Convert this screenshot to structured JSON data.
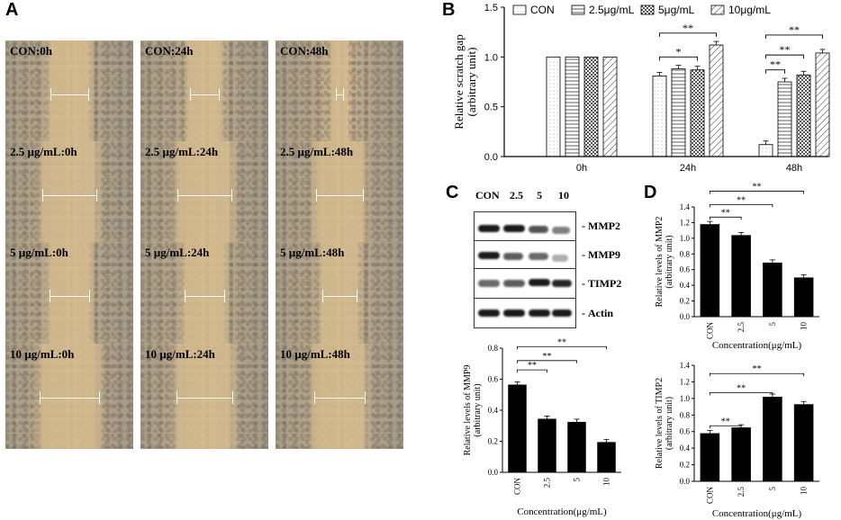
{
  "panels": {
    "a": "A",
    "b": "B",
    "c": "C",
    "d": "D"
  },
  "micrographs": [
    {
      "label": "CON:0h",
      "gap": 0.3
    },
    {
      "label": "CON:24h",
      "gap": 0.22
    },
    {
      "label": "CON:48h",
      "gap": 0.05
    },
    {
      "label": "2.5 µg/mL:0h",
      "gap": 0.42
    },
    {
      "label": "2.5 µg/mL:24h",
      "gap": 0.42
    },
    {
      "label": "2.5 µg/mL:48h",
      "gap": 0.36
    },
    {
      "label": "5 µg/mL:0h",
      "gap": 0.31
    },
    {
      "label": "5 µg/mL:24h",
      "gap": 0.31
    },
    {
      "label": "5 µg/mL:48h",
      "gap": 0.27
    },
    {
      "label": "10 µg/mL:0h",
      "gap": 0.46
    },
    {
      "label": "10 µg/mL:24h",
      "gap": 0.44
    },
    {
      "label": "10 µg/mL:48h",
      "gap": 0.4
    }
  ],
  "blot": {
    "header": [
      "CON",
      "2.5",
      "5",
      "10"
    ],
    "rows": [
      "MMP2",
      "MMP9",
      "TIMP2",
      "Actin"
    ]
  },
  "chart_data": [
    {
      "id": "B",
      "type": "bar",
      "categories": [
        "0h",
        "24h",
        "48h"
      ],
      "series": [
        {
          "name": "CON",
          "values": [
            1.0,
            0.81,
            0.12
          ]
        },
        {
          "name": "2.5μg/mL",
          "values": [
            1.0,
            0.88,
            0.75
          ]
        },
        {
          "name": "5μg/mL",
          "values": [
            1.0,
            0.87,
            0.82
          ]
        },
        {
          "name": "10μg/mL",
          "values": [
            1.0,
            1.12,
            1.04
          ]
        }
      ],
      "ylabel": "Relative scratch gap\n(arbitrary unit)",
      "ylim": [
        0,
        1.5
      ],
      "yticks": [
        "0.0",
        "0.5",
        "1.0",
        "1.5"
      ],
      "legend": "top",
      "annotations": [
        "*",
        "**",
        "**",
        "**",
        "**"
      ]
    },
    {
      "id": "C-MMP9",
      "type": "bar",
      "categories": [
        "CON",
        "2.5",
        "5",
        "10"
      ],
      "values": [
        0.565,
        0.345,
        0.325,
        0.195
      ],
      "ylabel": "Relative levels of MMP9\n(arbitrary unit)",
      "xlabel": "Concentration(μg/mL)",
      "ylim": [
        0,
        0.8
      ],
      "yticks": [
        "0.0",
        "0.2",
        "0.4",
        "0.6",
        "0.8"
      ],
      "annotations": [
        "**",
        "**",
        "**"
      ]
    },
    {
      "id": "D-MMP2",
      "type": "bar",
      "categories": [
        "CON",
        "2.5",
        "5",
        "10"
      ],
      "values": [
        1.18,
        1.04,
        0.69,
        0.5
      ],
      "ylabel": "Relative levels of MMP2\n(arbitrary unit)",
      "xlabel": "Concentration(μg/mL)",
      "ylim": [
        0,
        1.4
      ],
      "yticks": [
        "0.0",
        "0.2",
        "0.4",
        "0.6",
        "0.8",
        "1.0",
        "1.2",
        "1.4"
      ],
      "annotations": [
        "**",
        "**",
        "**"
      ]
    },
    {
      "id": "D-TIMP2",
      "type": "bar",
      "categories": [
        "CON",
        "2.5",
        "5",
        "10"
      ],
      "values": [
        0.58,
        0.65,
        1.02,
        0.93
      ],
      "ylabel": "Relative levels of TIMP2\n(arbitrary unit)",
      "xlabel": "Concentration(μg/mL)",
      "ylim": [
        0,
        1.4
      ],
      "yticks": [
        "0.0",
        "0.2",
        "0.4",
        "0.6",
        "0.8",
        "1.0",
        "1.2",
        "1.4"
      ],
      "annotations": [
        "**",
        "**",
        "**"
      ]
    }
  ]
}
